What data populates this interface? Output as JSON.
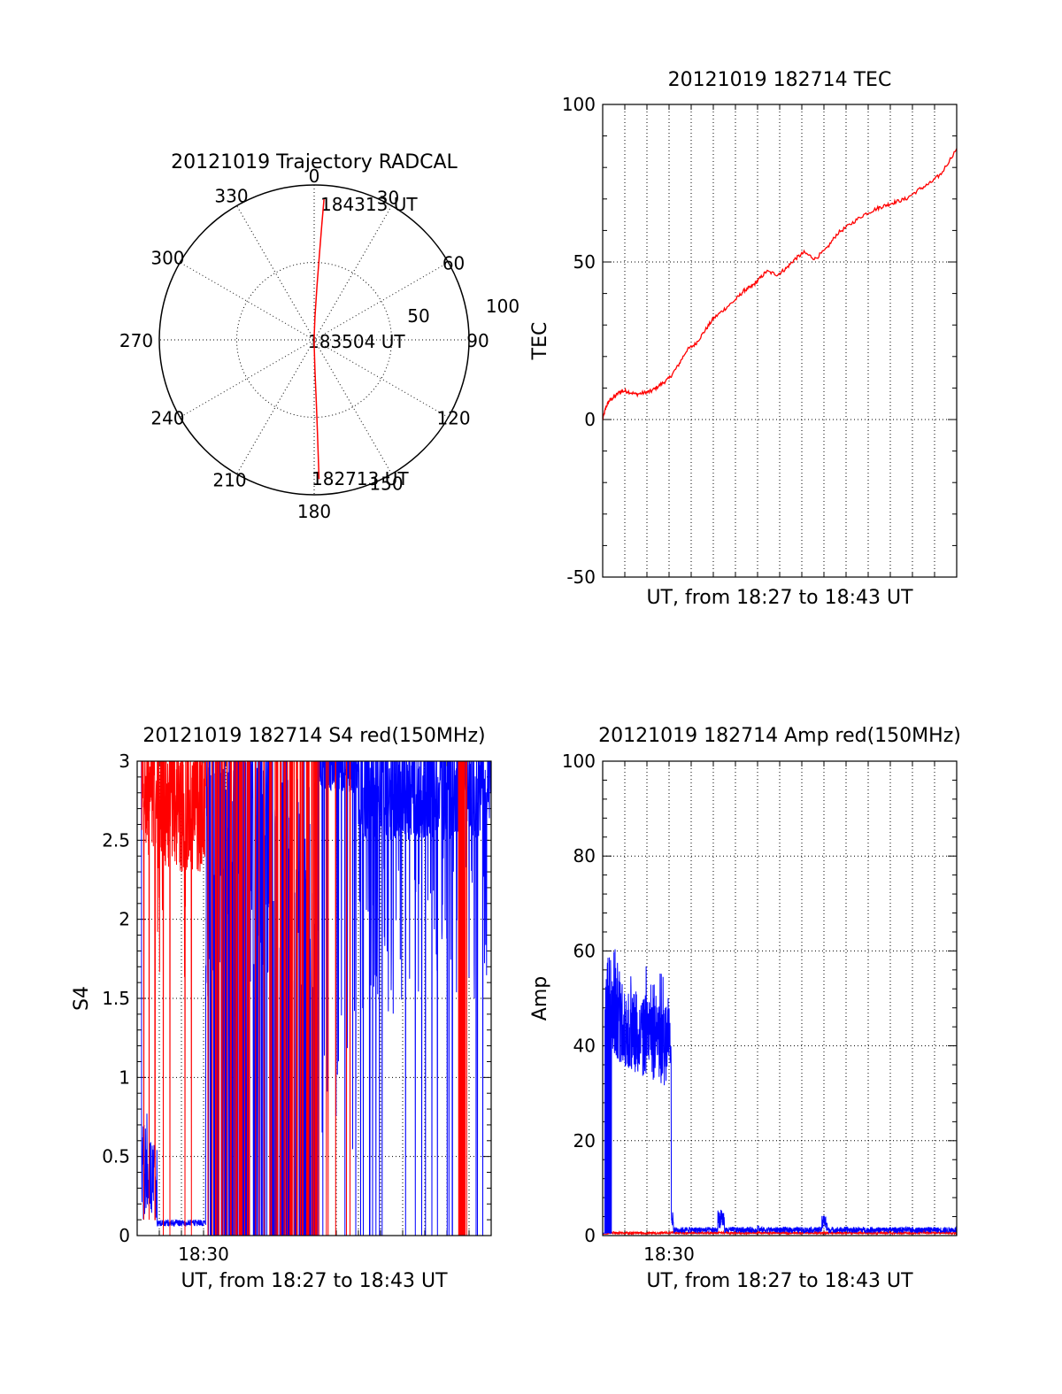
{
  "chart_data": [
    {
      "id": "polar",
      "type": "polar-trajectory",
      "title": "20121019 Trajectory RADCAL",
      "azimuth_labels": [
        {
          "az": 0,
          "text": "0"
        },
        {
          "az": 30,
          "text": "30"
        },
        {
          "az": 60,
          "text": "60"
        },
        {
          "az": 90,
          "text": "90"
        },
        {
          "az": 120,
          "text": "120"
        },
        {
          "az": 150,
          "text": "150"
        },
        {
          "az": 180,
          "text": "180"
        },
        {
          "az": 210,
          "text": "210"
        },
        {
          "az": 240,
          "text": "240"
        },
        {
          "az": 270,
          "text": "270"
        },
        {
          "az": 300,
          "text": "300"
        },
        {
          "az": 330,
          "text": "330"
        }
      ],
      "radial_labels": [
        {
          "r": 50,
          "text": "50"
        },
        {
          "r": 100,
          "text": "100"
        }
      ],
      "rmax": 100,
      "annotations": [
        {
          "text": "184313 UT",
          "az": 4,
          "r": 91
        },
        {
          "text": "183504 UT",
          "az": 90,
          "r": 1
        },
        {
          "text": "182713 UT",
          "az": 178,
          "r": 90
        }
      ],
      "trajectory": {
        "color": "#ff0000",
        "points": [
          {
            "az": 4,
            "r": 91
          },
          {
            "az": 3.8,
            "r": 75
          },
          {
            "az": 3.5,
            "r": 55
          },
          {
            "az": 3,
            "r": 35
          },
          {
            "az": 2,
            "r": 15
          },
          {
            "az": 0,
            "r": 2
          },
          {
            "az": 180,
            "r": 3
          },
          {
            "az": 178.5,
            "r": 20
          },
          {
            "az": 178,
            "r": 40
          },
          {
            "az": 178,
            "r": 60
          },
          {
            "az": 178,
            "r": 80
          },
          {
            "az": 178,
            "r": 90
          }
        ]
      }
    },
    {
      "id": "tec",
      "type": "line",
      "title": "20121019 182714 TEC",
      "xlabel": "UT, from 18:27 to 18:43 UT",
      "ylabel": "TEC",
      "xlim": [
        0,
        16
      ],
      "ylim": [
        -50,
        100
      ],
      "yticks": [
        -50,
        0,
        50,
        100
      ],
      "series": [
        {
          "color": "#ff0000",
          "x": [
            0,
            0.15,
            0.3,
            0.5,
            0.8,
            1.1,
            1.5,
            1.9,
            2.2,
            2.6,
            3.0,
            3.4,
            3.8,
            4.2,
            4.6,
            5.0,
            5.5,
            6.0,
            6.4,
            6.7,
            7.0,
            7.4,
            7.9,
            8.3,
            8.7,
            9.1,
            9.6,
            10.1,
            10.6,
            11.2,
            11.8,
            12.4,
            12.8,
            13.2,
            13.7,
            14.3,
            14.8,
            15.3,
            16
          ],
          "values": [
            0,
            4,
            6,
            7,
            9,
            9,
            8,
            8.5,
            9,
            11,
            13,
            17,
            22,
            24,
            28,
            32,
            35,
            38,
            41,
            42,
            44,
            47,
            46,
            48,
            51,
            53,
            51,
            54,
            59,
            62,
            65,
            67,
            68,
            69,
            70,
            73,
            75,
            78,
            86
          ]
        }
      ]
    },
    {
      "id": "s4",
      "type": "line",
      "title": "20121019 182714 S4 red(150MHz)",
      "xlabel": "UT, from 18:27 to 18:43 UT",
      "ylabel": "S4",
      "xlim": [
        0,
        16
      ],
      "ylim": [
        0,
        3
      ],
      "yticks": [
        {
          "v": 0,
          "t": "0"
        },
        {
          "v": 0.5,
          "t": "0.5"
        },
        {
          "v": 1,
          "t": "1"
        },
        {
          "v": 1.5,
          "t": "1.5"
        },
        {
          "v": 2,
          "t": "2"
        },
        {
          "v": 2.5,
          "t": "2.5"
        },
        {
          "v": 3,
          "t": "3"
        }
      ],
      "xticks": [
        {
          "v": 3,
          "t": "18:30"
        }
      ],
      "series": [
        {
          "color": "#0000ff",
          "note": "blue channel"
        },
        {
          "color": "#ff0000",
          "note": "red channel"
        }
      ]
    },
    {
      "id": "amp",
      "type": "line",
      "title": "20121019 182714 Amp red(150MHz)",
      "xlabel": "UT, from 18:27 to 18:43 UT",
      "ylabel": "Amp",
      "xlim": [
        0,
        16
      ],
      "ylim": [
        0,
        100
      ],
      "yticks": [
        {
          "v": 0,
          "t": "0"
        },
        {
          "v": 20,
          "t": "20"
        },
        {
          "v": 40,
          "t": "40"
        },
        {
          "v": 60,
          "t": "60"
        },
        {
          "v": 80,
          "t": "80"
        },
        {
          "v": 100,
          "t": "100"
        }
      ],
      "xticks": [
        {
          "v": 3,
          "t": "18:30"
        }
      ],
      "series": [
        {
          "color": "#0000ff",
          "note": "blue channel"
        },
        {
          "color": "#ff0000",
          "note": "red channel"
        }
      ]
    }
  ]
}
